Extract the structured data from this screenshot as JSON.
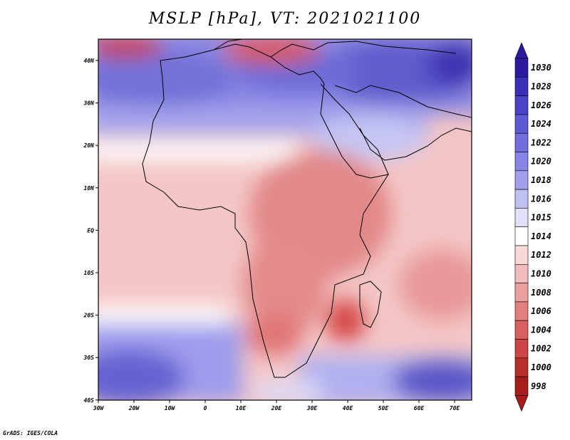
{
  "title": "MSLP [hPa], VT: 2021021100",
  "credit": "GrADS: IGES/COLA",
  "axes": {
    "x_ticks": [
      "30W",
      "20W",
      "10W",
      "0",
      "10E",
      "20E",
      "30E",
      "40E",
      "50E",
      "60E",
      "70E"
    ],
    "y_ticks": [
      "40N",
      "30N",
      "20N",
      "10N",
      "EQ",
      "10S",
      "20S",
      "30S",
      "40S"
    ]
  },
  "colorbar": {
    "levels": [
      "1030",
      "1028",
      "1026",
      "1024",
      "1022",
      "1020",
      "1018",
      "1016",
      "1015",
      "1014",
      "1012",
      "1010",
      "1008",
      "1006",
      "1004",
      "1002",
      "1000",
      "998"
    ],
    "colors": [
      "#2a1aa0",
      "#3a30b8",
      "#4b44c8",
      "#5c5ad4",
      "#706fdc",
      "#8686e4",
      "#a0a0ec",
      "#c0c0f4",
      "#e0e0fa",
      "#ffffff",
      "#f8d8d8",
      "#f2bcbc",
      "#eaa0a0",
      "#e28080",
      "#d86060",
      "#cc4444",
      "#bb2e2e",
      "#a81c1c"
    ]
  },
  "icons": {
    "colorbar_top": "triangle-up-icon",
    "colorbar_bottom": "triangle-down-icon"
  }
}
